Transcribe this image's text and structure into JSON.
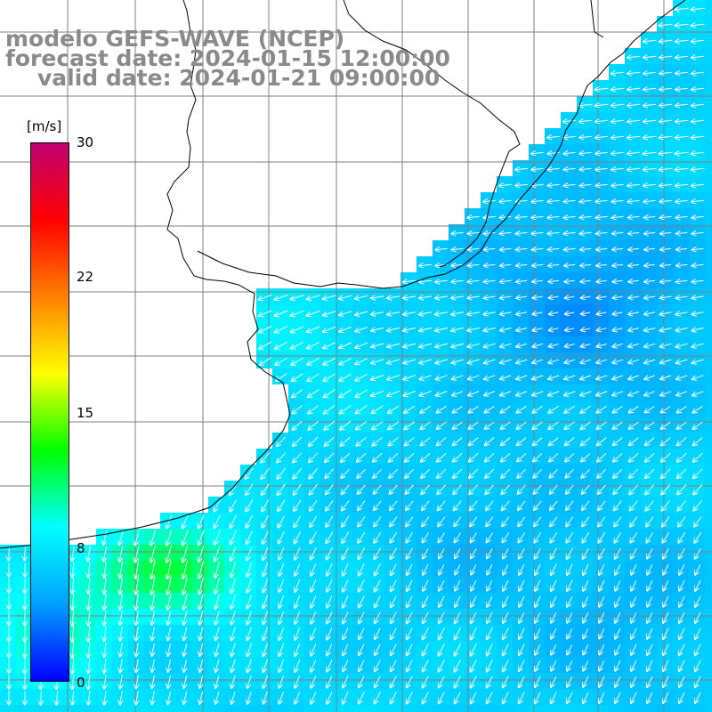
{
  "title": {
    "line1": "modelo GEFS-WAVE (NCEP)",
    "line2": "forecast date: 2024-01-15 12:00:00",
    "line3": "valid date: 2024-01-21 09:00:00"
  },
  "colorbar": {
    "units": "[m/s]",
    "min": 0,
    "max": 30,
    "labels": [
      "30",
      "22",
      "15",
      "8",
      "0"
    ],
    "label_values": [
      30,
      22,
      15,
      8,
      0
    ],
    "stops": [
      "#0000ff",
      "#00a0ff",
      "#00ffff",
      "#00ff00",
      "#ffff00",
      "#ff8000",
      "#ff0000",
      "#c00070"
    ]
  },
  "chart_data": {
    "type": "heatmap",
    "variable": "wind speed",
    "units": "m/s",
    "colormap_range": [
      0,
      30
    ],
    "typical_values": {
      "open_ocean": 7,
      "northeast_offshore_min": 3,
      "southwest_coastal_max": 12
    },
    "arrow_direction": "from northeast toward southwest, turning southward in the south"
  }
}
